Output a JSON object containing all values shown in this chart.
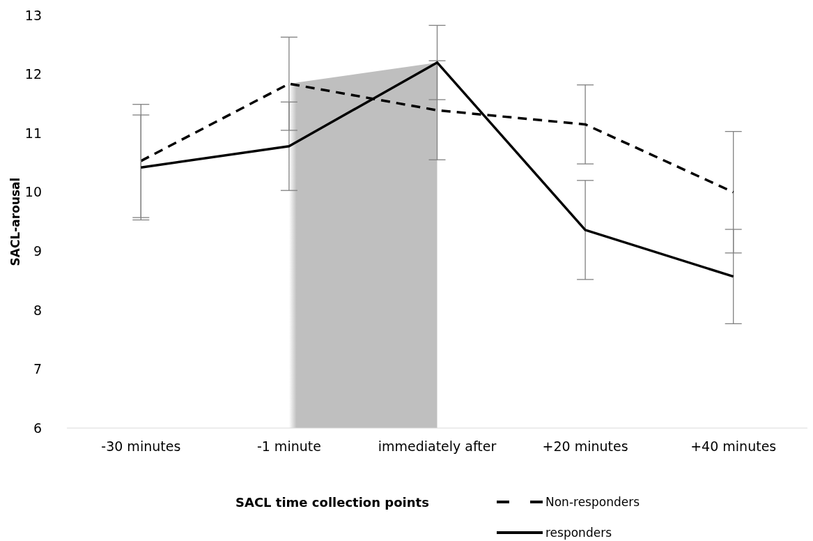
{
  "chart_data": {
    "type": "line",
    "xlabel": "SACL time collection points",
    "ylabel": "SACL-arousal",
    "categories": [
      "-30 minutes",
      "-1 minute",
      "immediately after",
      "+20 minutes",
      "+40 minutes"
    ],
    "series": [
      {
        "name": "Non-responders",
        "color": "#000000",
        "line_style": "dashed",
        "values": [
          10.53,
          11.84,
          11.39,
          11.15,
          10.0
        ],
        "errors": [
          0.96,
          0.79,
          0.84,
          0.67,
          1.03
        ]
      },
      {
        "name": "responders",
        "color": "#000000",
        "line_style": "solid",
        "values": [
          10.42,
          10.78,
          12.2,
          9.36,
          8.57
        ],
        "errors": [
          0.89,
          0.75,
          0.63,
          0.84,
          0.8
        ]
      }
    ],
    "bands": [
      {
        "axis": "x",
        "from": "-1 minute",
        "to": "immediately after",
        "color": "#bfbfbf"
      }
    ],
    "ylim": [
      6,
      13
    ],
    "yticks": [
      6,
      7,
      8,
      9,
      10,
      11,
      12,
      13
    ],
    "legend": "bottom",
    "marker": "none"
  }
}
